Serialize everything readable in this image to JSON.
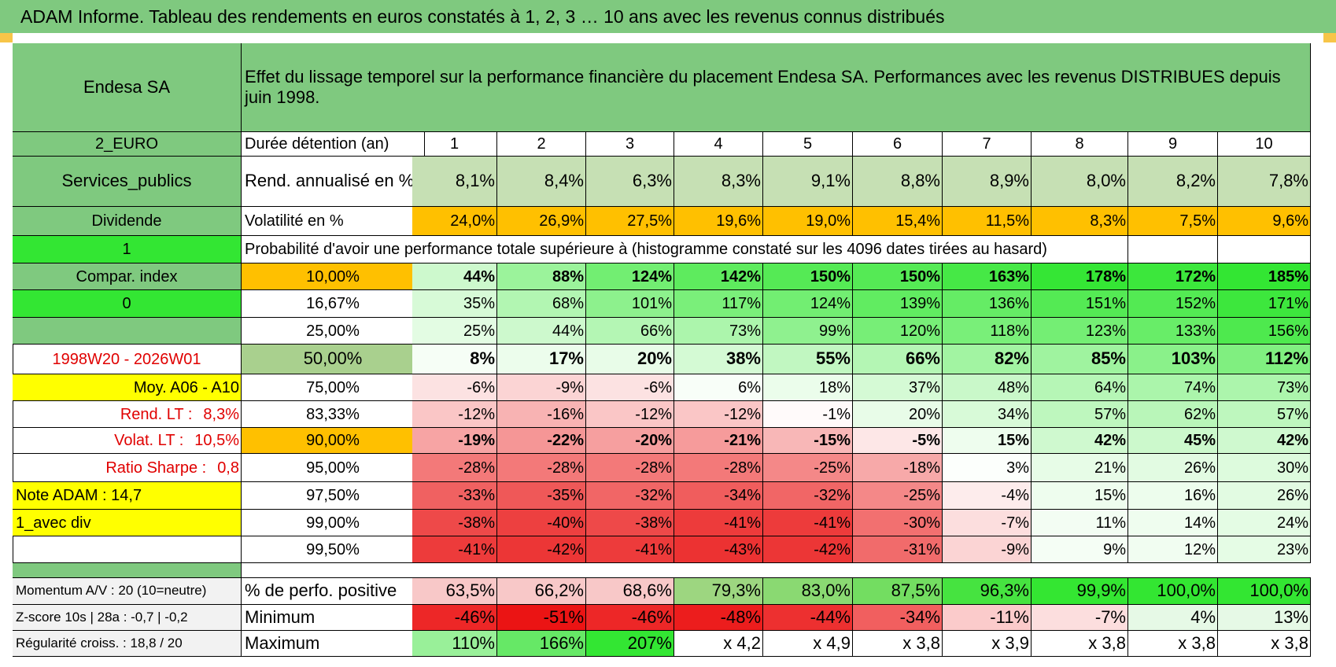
{
  "page_title": "ADAM Informe. Tableau des rendements en euros constatés à 1, 2, 3 … 10 ans avec les revenus connus distribués",
  "colors": {
    "header_green": "#7fc97f",
    "bright_green": "#33e633",
    "orange": "#ffc000",
    "yellow": "#ffff00",
    "red_text": "#e00000"
  },
  "left_panel": {
    "name": "Endesa SA",
    "currency": "2_EURO",
    "sector": "Services_publics",
    "type": "Dividende",
    "flag1": "1",
    "compar_index": "Compar. index",
    "flag0": "0",
    "period": "1998W20 - 2026W01",
    "moy": "Moy. A06 - A10",
    "rend_lt_label": "Rend. LT :",
    "rend_lt_value": "8,3%",
    "volat_lt_label": "Volat. LT :",
    "volat_lt_value": "10,5%",
    "sharpe_label": "Ratio Sharpe :",
    "sharpe_value": "0,8",
    "note": "Note ADAM : 14,7",
    "avec_div": "1_avec div",
    "momentum": "Momentum A/V : 20 (10=neutre)",
    "zscore": "Z-score 10s | 28a : -0,7 | -0,2",
    "regularite": "Régularité croiss. : 18,8 / 20"
  },
  "header_desc": "Effet du lissage temporel sur la performance financière du placement Endesa SA. Performances avec les revenus DISTRIBUES depuis juin 1998.",
  "years_label": "Durée détention (an)",
  "years": [
    "1",
    "2",
    "3",
    "4",
    "5",
    "6",
    "7",
    "8",
    "9",
    "10"
  ],
  "rend_label": "Rend. annualisé en %",
  "rend": [
    "8,1%",
    "8,4%",
    "6,3%",
    "8,3%",
    "9,1%",
    "8,8%",
    "8,9%",
    "8,0%",
    "8,2%",
    "7,8%"
  ],
  "vol_label": "Volatilité en %",
  "vol": [
    "24,0%",
    "26,9%",
    "27,5%",
    "19,6%",
    "19,0%",
    "15,4%",
    "11,5%",
    "8,3%",
    "7,5%",
    "9,6%"
  ],
  "prob_title": "Probabilité d'avoir une performance totale supérieure à (histogramme constaté sur les 4096 dates tirées au hasard)",
  "quantiles": [
    {
      "p": "10,00%",
      "v": [
        "44%",
        "88%",
        "124%",
        "142%",
        "150%",
        "150%",
        "163%",
        "178%",
        "172%",
        "185%"
      ]
    },
    {
      "p": "16,67%",
      "v": [
        "35%",
        "68%",
        "101%",
        "117%",
        "124%",
        "139%",
        "136%",
        "151%",
        "152%",
        "171%"
      ]
    },
    {
      "p": "25,00%",
      "v": [
        "25%",
        "44%",
        "66%",
        "73%",
        "99%",
        "120%",
        "118%",
        "123%",
        "133%",
        "156%"
      ]
    },
    {
      "p": "50,00%",
      "v": [
        "8%",
        "17%",
        "20%",
        "38%",
        "55%",
        "66%",
        "82%",
        "85%",
        "103%",
        "112%"
      ]
    },
    {
      "p": "75,00%",
      "v": [
        "-6%",
        "-9%",
        "-6%",
        "6%",
        "18%",
        "37%",
        "48%",
        "64%",
        "74%",
        "73%"
      ]
    },
    {
      "p": "83,33%",
      "v": [
        "-12%",
        "-16%",
        "-12%",
        "-12%",
        "-1%",
        "20%",
        "34%",
        "57%",
        "62%",
        "57%"
      ]
    },
    {
      "p": "90,00%",
      "v": [
        "-19%",
        "-22%",
        "-20%",
        "-21%",
        "-15%",
        "-5%",
        "15%",
        "42%",
        "45%",
        "42%"
      ]
    },
    {
      "p": "95,00%",
      "v": [
        "-28%",
        "-28%",
        "-28%",
        "-28%",
        "-25%",
        "-18%",
        "3%",
        "21%",
        "26%",
        "30%"
      ]
    },
    {
      "p": "97,50%",
      "v": [
        "-33%",
        "-35%",
        "-32%",
        "-34%",
        "-32%",
        "-25%",
        "-4%",
        "15%",
        "16%",
        "26%"
      ]
    },
    {
      "p": "99,00%",
      "v": [
        "-38%",
        "-40%",
        "-38%",
        "-41%",
        "-41%",
        "-30%",
        "-7%",
        "11%",
        "14%",
        "24%"
      ]
    },
    {
      "p": "99,50%",
      "v": [
        "-41%",
        "-42%",
        "-41%",
        "-43%",
        "-42%",
        "-31%",
        "-9%",
        "9%",
        "12%",
        "23%"
      ]
    }
  ],
  "bottom": [
    {
      "label": "% de perfo. positive",
      "v": [
        "63,5%",
        "66,2%",
        "68,6%",
        "79,3%",
        "83,0%",
        "87,5%",
        "96,3%",
        "99,9%",
        "100,0%",
        "100,0%"
      ]
    },
    {
      "label": "Minimum",
      "v": [
        "-46%",
        "-51%",
        "-46%",
        "-48%",
        "-44%",
        "-34%",
        "-11%",
        "-7%",
        "4%",
        "13%"
      ]
    },
    {
      "label": "Maximum",
      "v": [
        "110%",
        "166%",
        "207%",
        "x 4,2",
        "x 4,9",
        "x 3,8",
        "x 3,9",
        "x 3,8",
        "x 3,8",
        "x 3,8"
      ]
    }
  ]
}
